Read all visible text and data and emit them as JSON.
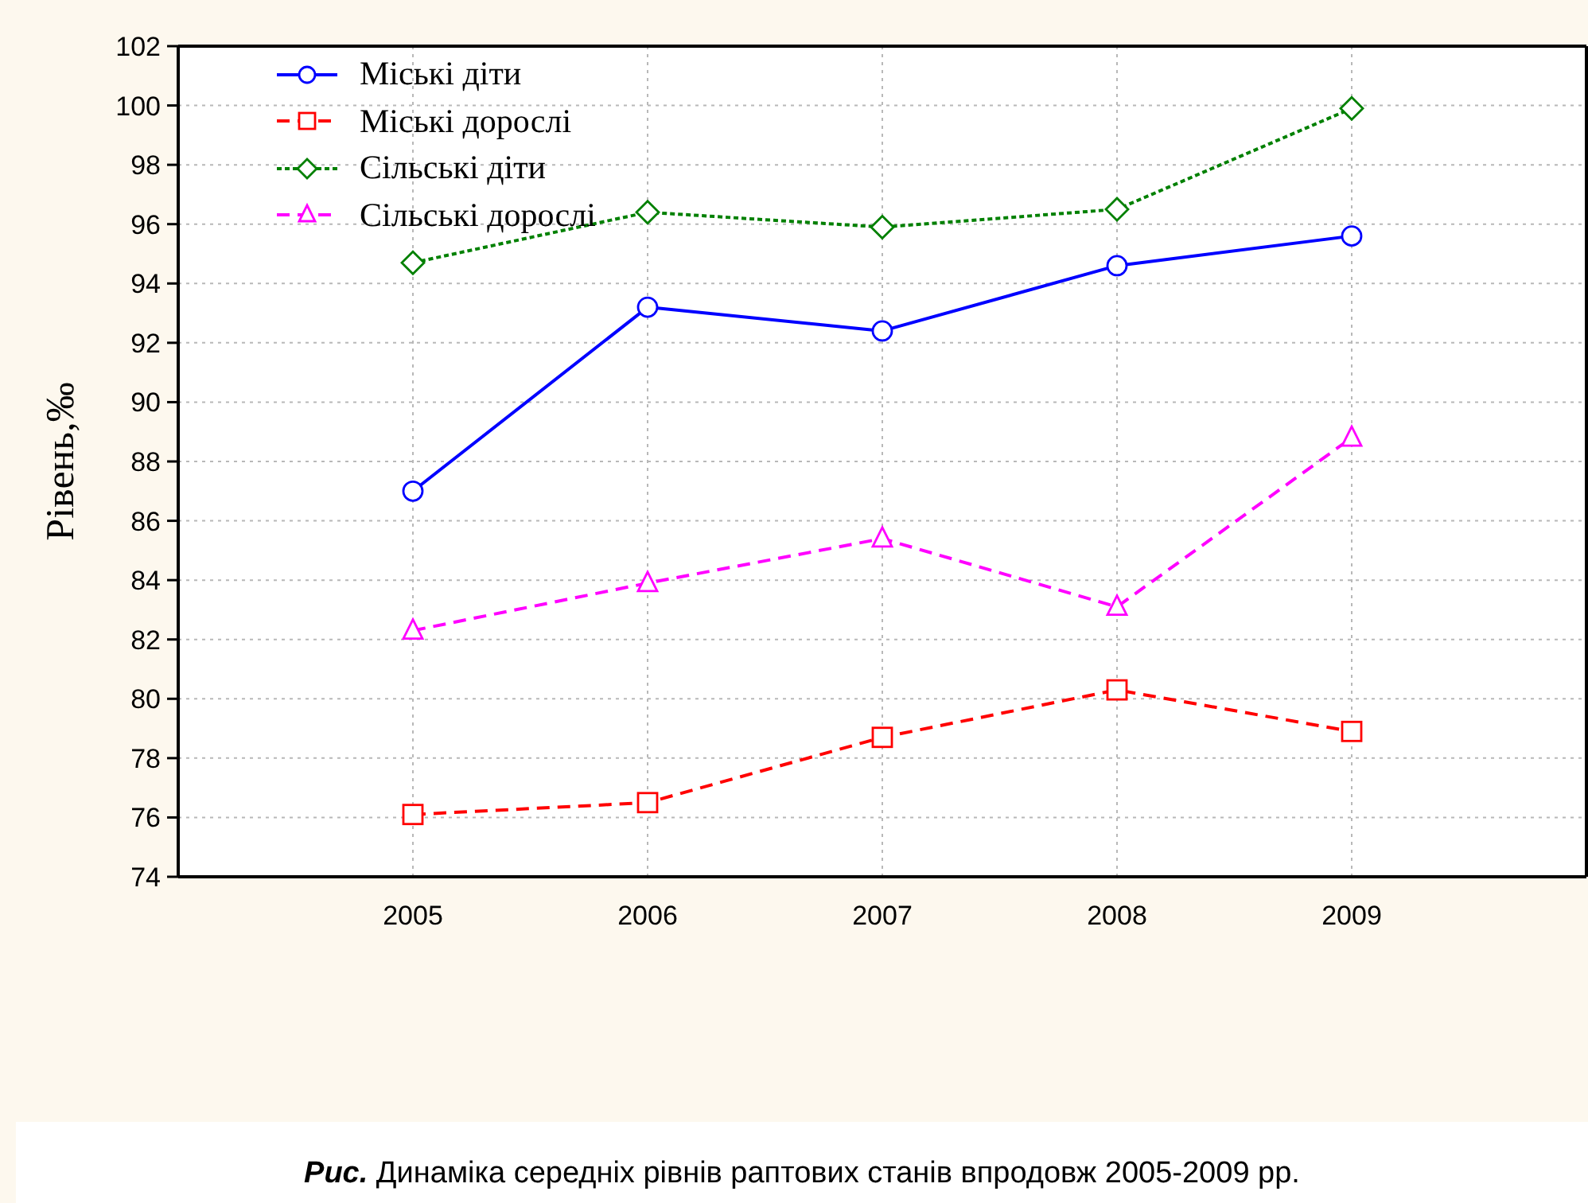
{
  "chart_data": {
    "type": "line",
    "x": [
      2005,
      2006,
      2007,
      2008,
      2009
    ],
    "xlim": [
      2004,
      2010
    ],
    "xticks": [
      2005,
      2006,
      2007,
      2008,
      2009
    ],
    "ylim": [
      74,
      102
    ],
    "yticks": [
      74,
      76,
      78,
      80,
      82,
      84,
      86,
      88,
      90,
      92,
      94,
      96,
      98,
      100,
      102
    ],
    "ylabel": "Рівень,‰",
    "grid": true,
    "legend": "top left",
    "series": [
      {
        "name": "Міські діти",
        "color": "#0000ff",
        "marker": "circle",
        "line_style": "solid",
        "values": [
          87.0,
          93.2,
          92.4,
          94.6,
          95.6
        ]
      },
      {
        "name": "Міські дорослі",
        "color": "#ff0000",
        "marker": "square",
        "line_style": "dashed",
        "values": [
          76.1,
          76.5,
          78.7,
          80.3,
          78.9
        ]
      },
      {
        "name": "Сільські діти",
        "color": "#008000",
        "marker": "diamond",
        "line_style": "dotted",
        "values": [
          94.7,
          96.4,
          95.9,
          96.5,
          99.9
        ]
      },
      {
        "name": "Сільські дорослі",
        "color": "#ff00ff",
        "marker": "triangle",
        "line_style": "dashed",
        "values": [
          82.3,
          83.9,
          85.4,
          83.1,
          88.8
        ]
      }
    ],
    "annotations": [
      "Рис. Динаміка середніх рівнів раптових станів впродовж 2005-2009 рр."
    ]
  }
}
